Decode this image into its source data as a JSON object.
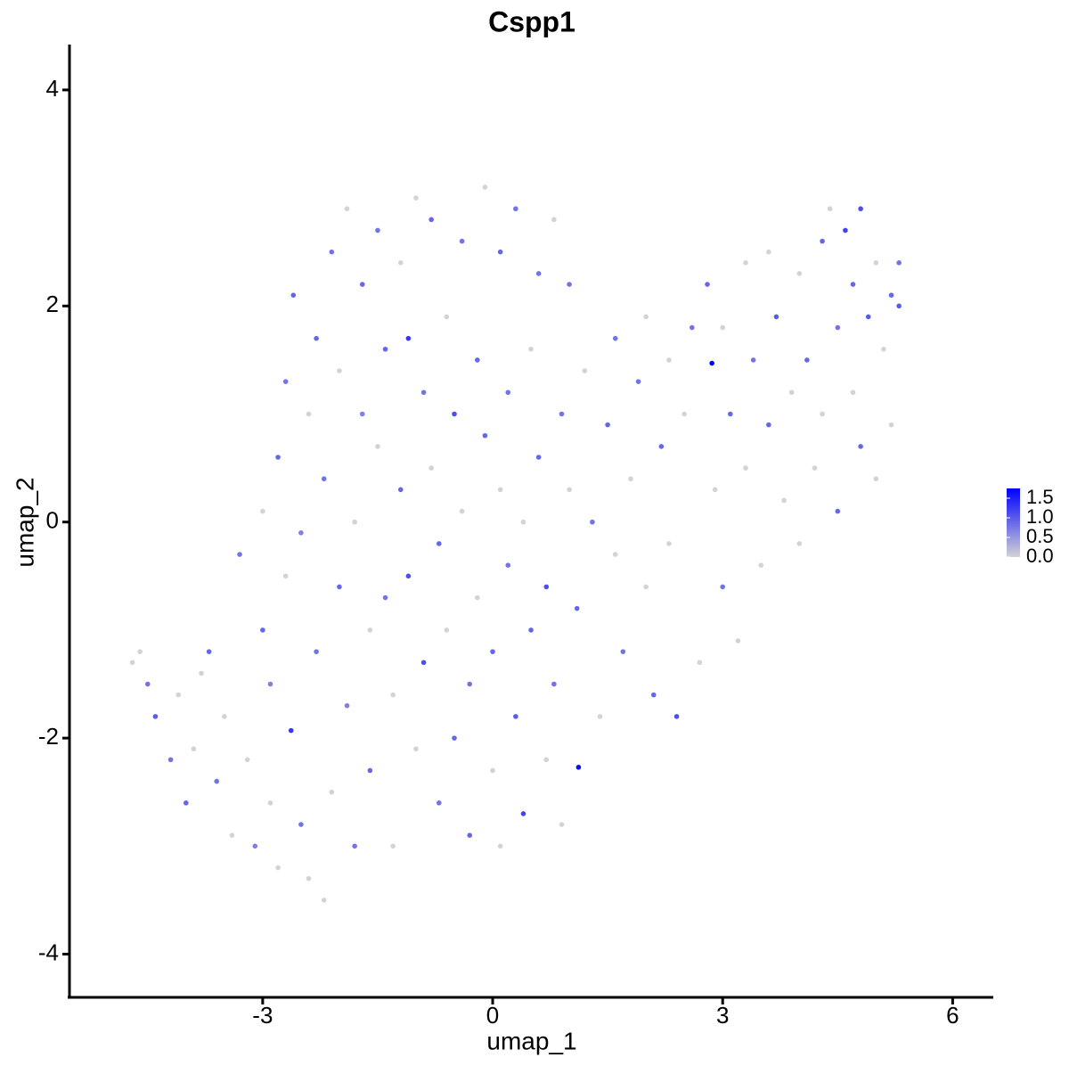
{
  "chart_data": {
    "type": "scatter",
    "title": "Cspp1",
    "x_label": "umap_1",
    "y_label": "umap_2",
    "x": [
      -4.7,
      -4.6,
      -4.5,
      -4.4,
      -4.2,
      -4.1,
      -4.0,
      -3.9,
      -3.8,
      -3.7,
      -3.6,
      -3.5,
      -3.4,
      -3.3,
      -3.2,
      -3.1,
      -3.0,
      -3.0,
      -2.9,
      -2.9,
      -2.8,
      -2.8,
      -2.7,
      -2.7,
      -2.63,
      -2.6,
      -2.5,
      -2.5,
      -2.4,
      -2.4,
      -2.3,
      -2.3,
      -2.2,
      -2.2,
      -2.1,
      -2.1,
      -2.0,
      -2.0,
      -1.9,
      -1.9,
      -1.8,
      -1.8,
      -1.7,
      -1.7,
      -1.6,
      -1.6,
      -1.5,
      -1.5,
      -1.4,
      -1.4,
      -1.3,
      -1.3,
      -1.2,
      -1.2,
      -1.1,
      -1.1,
      -1.0,
      -1.0,
      -0.9,
      -0.9,
      -0.8,
      -0.8,
      -0.7,
      -0.7,
      -0.6,
      -0.6,
      -0.5,
      -0.5,
      -0.4,
      -0.4,
      -0.3,
      -0.3,
      -0.2,
      -0.2,
      -0.1,
      -0.1,
      0.0,
      0.0,
      0.1,
      0.1,
      0.1,
      0.2,
      0.2,
      0.3,
      0.3,
      0.4,
      0.4,
      0.5,
      0.5,
      0.6,
      0.6,
      0.7,
      0.7,
      0.8,
      0.8,
      0.9,
      0.9,
      1.0,
      1.0,
      1.12,
      1.1,
      1.2,
      1.3,
      1.4,
      1.5,
      1.6,
      1.6,
      1.7,
      1.8,
      1.9,
      2.0,
      2.0,
      2.1,
      2.2,
      2.3,
      2.3,
      2.4,
      2.5,
      2.6,
      2.7,
      2.8,
      2.86,
      2.9,
      3.0,
      3.0,
      3.1,
      3.2,
      3.3,
      3.3,
      3.4,
      3.5,
      3.6,
      3.6,
      3.7,
      3.8,
      3.9,
      4.0,
      4.0,
      4.1,
      4.2,
      4.3,
      4.3,
      4.4,
      4.5,
      4.5,
      4.6,
      4.7,
      4.7,
      4.8,
      4.8,
      4.9,
      5.0,
      5.0,
      5.1,
      5.2,
      5.2,
      5.3,
      5.3
    ],
    "y": [
      -1.3,
      -1.2,
      -1.5,
      -1.8,
      -2.2,
      -1.6,
      -2.6,
      -2.1,
      -1.4,
      -1.2,
      -2.4,
      -1.8,
      -2.9,
      -0.3,
      -2.2,
      -3.0,
      -1.0,
      0.1,
      -1.5,
      -2.6,
      -3.2,
      0.6,
      -0.5,
      1.3,
      -1.93,
      2.1,
      -0.1,
      -2.8,
      1.0,
      -3.3,
      1.7,
      -1.2,
      -3.5,
      0.4,
      2.5,
      -2.5,
      -0.6,
      1.4,
      2.9,
      -1.7,
      0.0,
      -3.0,
      2.2,
      1.0,
      -1.0,
      -2.3,
      0.7,
      2.7,
      -0.7,
      1.6,
      -1.6,
      -3.0,
      2.4,
      0.3,
      1.7,
      -0.5,
      -2.1,
      3.0,
      1.2,
      -1.3,
      2.8,
      0.5,
      -0.2,
      -2.6,
      1.9,
      -1.0,
      1.0,
      -2.0,
      2.6,
      0.1,
      -1.5,
      -2.9,
      1.5,
      -0.7,
      3.1,
      0.8,
      -1.2,
      -2.3,
      2.5,
      0.3,
      -3.0,
      1.2,
      -0.4,
      -1.8,
      2.9,
      0.0,
      -2.7,
      1.6,
      -1.0,
      2.3,
      0.6,
      -0.6,
      -2.2,
      2.8,
      -1.5,
      1.0,
      -2.8,
      0.3,
      2.2,
      -2.27,
      -0.8,
      1.4,
      0.0,
      -1.8,
      0.9,
      1.7,
      -0.3,
      -1.2,
      0.4,
      1.3,
      -0.6,
      1.9,
      -1.6,
      0.7,
      1.5,
      -0.2,
      -1.8,
      1.0,
      1.8,
      -1.3,
      2.2,
      1.47,
      0.3,
      -0.6,
      1.8,
      1.0,
      -1.1,
      2.4,
      0.5,
      1.5,
      -0.4,
      2.5,
      0.9,
      1.9,
      0.2,
      1.2,
      2.3,
      -0.2,
      1.5,
      0.5,
      2.6,
      1.0,
      2.9,
      1.8,
      0.1,
      2.7,
      1.2,
      2.2,
      0.7,
      2.9,
      1.9,
      2.4,
      0.4,
      1.6,
      2.1,
      0.9,
      2.4,
      2.0
    ],
    "values": [
      0,
      0,
      0.8,
      1.0,
      0.8,
      0,
      0.9,
      0,
      0,
      0.9,
      0.8,
      0,
      0,
      0.8,
      0,
      0.7,
      0.9,
      0,
      0.7,
      0,
      0,
      0.9,
      0,
      0.8,
      1.3,
      0.9,
      0.7,
      0.8,
      0,
      0,
      0.9,
      0.8,
      0,
      0.8,
      0.8,
      0,
      0.9,
      0,
      0,
      0.7,
      0,
      0.8,
      0.9,
      0.7,
      0,
      0.9,
      0,
      0.8,
      0.8,
      0.9,
      0,
      0,
      0,
      0.9,
      1.3,
      1.1,
      0,
      0,
      0.8,
      1.1,
      0.9,
      0,
      0.9,
      0.8,
      0,
      0,
      1.1,
      0.9,
      0.8,
      0,
      0.8,
      0.9,
      0.9,
      0,
      0,
      0.9,
      0.9,
      0,
      0.9,
      0,
      0,
      0.8,
      0.8,
      1.0,
      0.8,
      0,
      1.2,
      0,
      0.9,
      0.8,
      0.9,
      1.1,
      0,
      0,
      0.8,
      0.8,
      0,
      0,
      0.8,
      1.65,
      0.9,
      0,
      0.8,
      0,
      0.9,
      0.8,
      0,
      0.8,
      0,
      0.8,
      0,
      0,
      0.9,
      0.9,
      0,
      0,
      1.1,
      0,
      0.8,
      0,
      0.9,
      1.75,
      0,
      0.8,
      0,
      0.9,
      0,
      0,
      0,
      0.8,
      0,
      0,
      0.9,
      1.0,
      0,
      0,
      0,
      0,
      0.9,
      0,
      0.9,
      0,
      0,
      0.8,
      0.9,
      1.2,
      0,
      0.9,
      0.9,
      1.1,
      1.0,
      0,
      0,
      0,
      0.9,
      0,
      0.8,
      1.0
    ],
    "xlim": [
      -5.52,
      6.53
    ],
    "ylim": [
      -4.4,
      4.42
    ],
    "xticks": [
      -3,
      0,
      3,
      6
    ],
    "yticks": [
      -4,
      -2,
      0,
      2,
      4
    ],
    "color_low": "#d3d3d3",
    "color_high": "#0000ff",
    "colorbar_lim": [
      0,
      1.75
    ],
    "colorbar_ticks": [
      {
        "value": 0,
        "label": "0.0"
      },
      0.5,
      {
        "value": 1,
        "label": "1.0"
      },
      1.5
    ]
  }
}
